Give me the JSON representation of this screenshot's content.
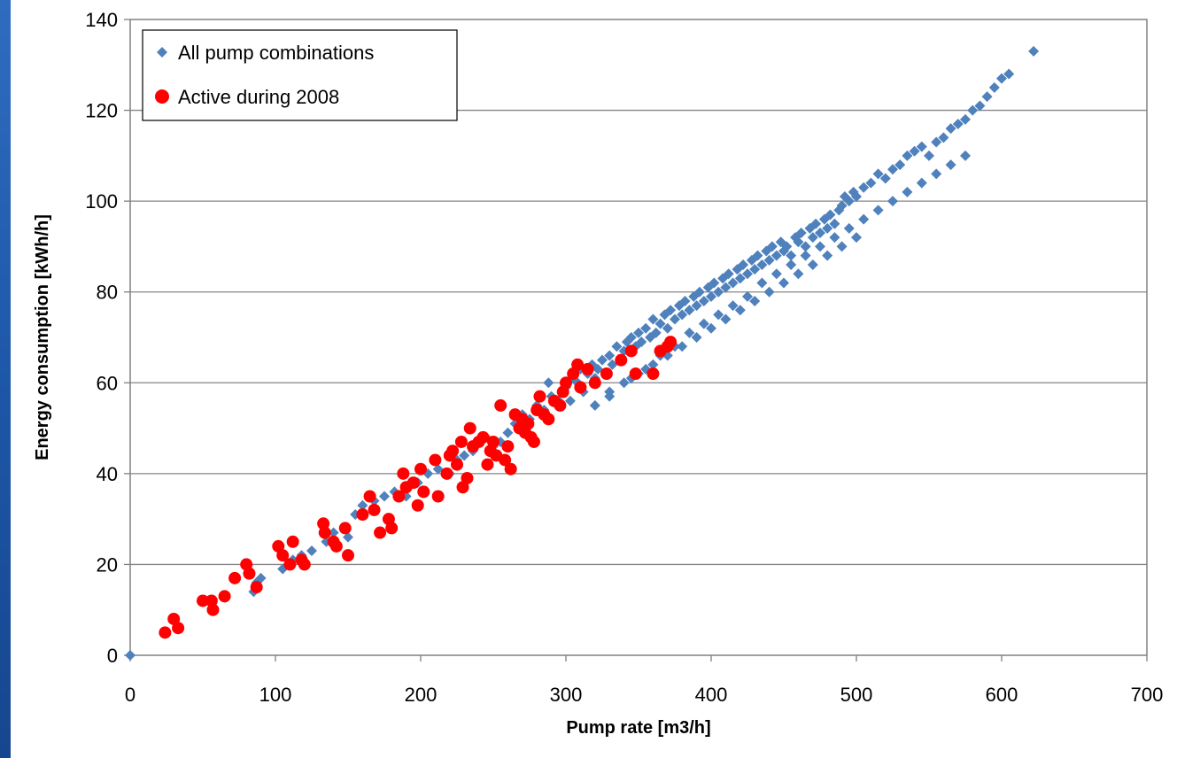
{
  "chart_data": {
    "type": "scatter",
    "xlabel": "Pump rate [m3/h]",
    "ylabel": "Energy consumption  [kWh/h]",
    "xlim": [
      0,
      700
    ],
    "ylim": [
      0,
      140
    ],
    "xticks": [
      0,
      100,
      200,
      300,
      400,
      500,
      600,
      700
    ],
    "yticks": [
      0,
      20,
      40,
      60,
      80,
      100,
      120,
      140
    ],
    "grid": "horizontal",
    "legend_position": "top-left",
    "series": [
      {
        "name": "All pump combinations",
        "marker": "diamond",
        "color": "#4f81bd",
        "points": [
          [
            0,
            0
          ],
          [
            85,
            14
          ],
          [
            87,
            16
          ],
          [
            90,
            17
          ],
          [
            105,
            19
          ],
          [
            110,
            20
          ],
          [
            112,
            21
          ],
          [
            118,
            22
          ],
          [
            125,
            23
          ],
          [
            135,
            25
          ],
          [
            140,
            27
          ],
          [
            150,
            26
          ],
          [
            155,
            31
          ],
          [
            160,
            33
          ],
          [
            168,
            34
          ],
          [
            175,
            35
          ],
          [
            182,
            36
          ],
          [
            190,
            35
          ],
          [
            198,
            38
          ],
          [
            205,
            40
          ],
          [
            212,
            41
          ],
          [
            220,
            40
          ],
          [
            225,
            43
          ],
          [
            230,
            44
          ],
          [
            236,
            45
          ],
          [
            240,
            47
          ],
          [
            245,
            48
          ],
          [
            250,
            46
          ],
          [
            255,
            47
          ],
          [
            260,
            49
          ],
          [
            265,
            51
          ],
          [
            270,
            53
          ],
          [
            275,
            52
          ],
          [
            280,
            55
          ],
          [
            285,
            54
          ],
          [
            288,
            60
          ],
          [
            290,
            57
          ],
          [
            295,
            56
          ],
          [
            298,
            58
          ],
          [
            300,
            59
          ],
          [
            303,
            56
          ],
          [
            305,
            61
          ],
          [
            308,
            60
          ],
          [
            310,
            63
          ],
          [
            312,
            58
          ],
          [
            315,
            62
          ],
          [
            318,
            64
          ],
          [
            320,
            61
          ],
          [
            322,
            63
          ],
          [
            325,
            65
          ],
          [
            328,
            62
          ],
          [
            330,
            66
          ],
          [
            332,
            64
          ],
          [
            335,
            68
          ],
          [
            338,
            65
          ],
          [
            340,
            67
          ],
          [
            342,
            69
          ],
          [
            345,
            70
          ],
          [
            348,
            68
          ],
          [
            350,
            71
          ],
          [
            352,
            69
          ],
          [
            355,
            72
          ],
          [
            358,
            70
          ],
          [
            360,
            74
          ],
          [
            362,
            71
          ],
          [
            365,
            73
          ],
          [
            368,
            75
          ],
          [
            370,
            72
          ],
          [
            372,
            76
          ],
          [
            375,
            74
          ],
          [
            378,
            77
          ],
          [
            380,
            75
          ],
          [
            382,
            78
          ],
          [
            385,
            76
          ],
          [
            388,
            79
          ],
          [
            390,
            77
          ],
          [
            392,
            80
          ],
          [
            395,
            78
          ],
          [
            398,
            81
          ],
          [
            400,
            79
          ],
          [
            402,
            82
          ],
          [
            405,
            80
          ],
          [
            408,
            83
          ],
          [
            410,
            81
          ],
          [
            412,
            84
          ],
          [
            415,
            82
          ],
          [
            418,
            85
          ],
          [
            420,
            83
          ],
          [
            422,
            86
          ],
          [
            425,
            84
          ],
          [
            428,
            87
          ],
          [
            430,
            85
          ],
          [
            432,
            88
          ],
          [
            435,
            86
          ],
          [
            438,
            89
          ],
          [
            440,
            87
          ],
          [
            442,
            90
          ],
          [
            445,
            88
          ],
          [
            448,
            91
          ],
          [
            450,
            89
          ],
          [
            452,
            90
          ],
          [
            455,
            88
          ],
          [
            458,
            92
          ],
          [
            460,
            91
          ],
          [
            462,
            93
          ],
          [
            465,
            90
          ],
          [
            468,
            94
          ],
          [
            470,
            92
          ],
          [
            472,
            95
          ],
          [
            475,
            93
          ],
          [
            478,
            96
          ],
          [
            480,
            94
          ],
          [
            482,
            97
          ],
          [
            485,
            95
          ],
          [
            488,
            98
          ],
          [
            490,
            99
          ],
          [
            492,
            101
          ],
          [
            495,
            100
          ],
          [
            498,
            102
          ],
          [
            500,
            101
          ],
          [
            505,
            103
          ],
          [
            510,
            104
          ],
          [
            515,
            106
          ],
          [
            520,
            105
          ],
          [
            525,
            107
          ],
          [
            530,
            108
          ],
          [
            535,
            110
          ],
          [
            540,
            111
          ],
          [
            545,
            112
          ],
          [
            550,
            110
          ],
          [
            555,
            113
          ],
          [
            560,
            114
          ],
          [
            565,
            116
          ],
          [
            570,
            117
          ],
          [
            575,
            118
          ],
          [
            580,
            120
          ],
          [
            585,
            121
          ],
          [
            590,
            123
          ],
          [
            595,
            125
          ],
          [
            600,
            127
          ],
          [
            605,
            128
          ],
          [
            622,
            133
          ],
          [
            320,
            55
          ],
          [
            330,
            57
          ],
          [
            340,
            60
          ],
          [
            350,
            62
          ],
          [
            360,
            64
          ],
          [
            370,
            66
          ],
          [
            380,
            68
          ],
          [
            390,
            70
          ],
          [
            400,
            72
          ],
          [
            410,
            74
          ],
          [
            420,
            76
          ],
          [
            430,
            78
          ],
          [
            440,
            80
          ],
          [
            450,
            82
          ],
          [
            460,
            84
          ],
          [
            470,
            86
          ],
          [
            480,
            88
          ],
          [
            490,
            90
          ],
          [
            500,
            92
          ],
          [
            330,
            58
          ],
          [
            345,
            61
          ],
          [
            355,
            63
          ],
          [
            365,
            66
          ],
          [
            375,
            68
          ],
          [
            385,
            71
          ],
          [
            395,
            73
          ],
          [
            405,
            75
          ],
          [
            415,
            77
          ],
          [
            425,
            79
          ],
          [
            435,
            82
          ],
          [
            445,
            84
          ],
          [
            455,
            86
          ],
          [
            465,
            88
          ],
          [
            475,
            90
          ],
          [
            485,
            92
          ],
          [
            495,
            94
          ],
          [
            505,
            96
          ],
          [
            515,
            98
          ],
          [
            525,
            100
          ],
          [
            535,
            102
          ],
          [
            545,
            104
          ],
          [
            555,
            106
          ],
          [
            565,
            108
          ],
          [
            575,
            110
          ]
        ]
      },
      {
        "name": "Active during 2008",
        "marker": "circle",
        "color": "#ff0000",
        "points": [
          [
            24,
            5
          ],
          [
            30,
            8
          ],
          [
            33,
            6
          ],
          [
            50,
            12
          ],
          [
            56,
            12
          ],
          [
            57,
            10
          ],
          [
            65,
            13
          ],
          [
            72,
            17
          ],
          [
            80,
            20
          ],
          [
            82,
            18
          ],
          [
            87,
            15
          ],
          [
            102,
            24
          ],
          [
            105,
            22
          ],
          [
            110,
            20
          ],
          [
            112,
            25
          ],
          [
            118,
            21
          ],
          [
            120,
            20
          ],
          [
            133,
            29
          ],
          [
            134,
            27
          ],
          [
            140,
            25
          ],
          [
            142,
            24
          ],
          [
            148,
            28
          ],
          [
            150,
            22
          ],
          [
            160,
            31
          ],
          [
            165,
            35
          ],
          [
            168,
            32
          ],
          [
            172,
            27
          ],
          [
            178,
            30
          ],
          [
            180,
            28
          ],
          [
            185,
            35
          ],
          [
            188,
            40
          ],
          [
            190,
            37
          ],
          [
            195,
            38
          ],
          [
            198,
            33
          ],
          [
            200,
            41
          ],
          [
            202,
            36
          ],
          [
            210,
            43
          ],
          [
            212,
            35
          ],
          [
            218,
            40
          ],
          [
            220,
            44
          ],
          [
            222,
            45
          ],
          [
            225,
            42
          ],
          [
            228,
            47
          ],
          [
            229,
            37
          ],
          [
            232,
            39
          ],
          [
            234,
            50
          ],
          [
            236,
            46
          ],
          [
            240,
            47
          ],
          [
            243,
            48
          ],
          [
            246,
            42
          ],
          [
            248,
            45
          ],
          [
            250,
            47
          ],
          [
            252,
            44
          ],
          [
            255,
            55
          ],
          [
            258,
            43
          ],
          [
            260,
            46
          ],
          [
            262,
            41
          ],
          [
            265,
            53
          ],
          [
            268,
            50
          ],
          [
            270,
            52
          ],
          [
            272,
            49
          ],
          [
            274,
            51
          ],
          [
            276,
            48
          ],
          [
            278,
            47
          ],
          [
            280,
            54
          ],
          [
            282,
            57
          ],
          [
            285,
            53
          ],
          [
            288,
            52
          ],
          [
            292,
            56
          ],
          [
            296,
            55
          ],
          [
            298,
            58
          ],
          [
            300,
            60
          ],
          [
            305,
            62
          ],
          [
            308,
            64
          ],
          [
            310,
            59
          ],
          [
            315,
            63
          ],
          [
            320,
            60
          ],
          [
            328,
            62
          ],
          [
            338,
            65
          ],
          [
            345,
            67
          ],
          [
            348,
            62
          ],
          [
            360,
            62
          ],
          [
            365,
            67
          ],
          [
            370,
            68
          ],
          [
            372,
            69
          ]
        ]
      }
    ]
  }
}
